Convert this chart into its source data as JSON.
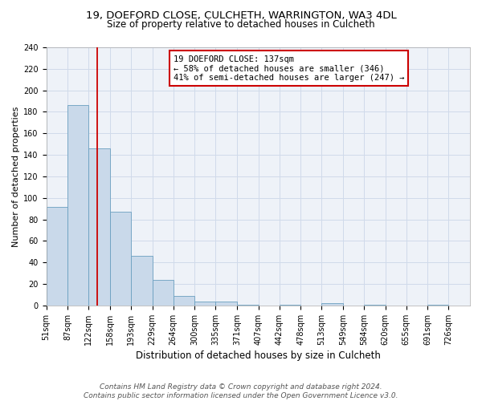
{
  "title": "19, DOEFORD CLOSE, CULCHETH, WARRINGTON, WA3 4DL",
  "subtitle": "Size of property relative to detached houses in Culcheth",
  "xlabel": "Distribution of detached houses by size in Culcheth",
  "ylabel": "Number of detached properties",
  "bar_color": "#c9d9ea",
  "bar_edge_color": "#6a9fc0",
  "grid_color": "#d0daea",
  "bg_color": "#eef2f8",
  "bin_edges": [
    51,
    87,
    122,
    158,
    193,
    229,
    264,
    300,
    335,
    371,
    407,
    442,
    478,
    513,
    549,
    584,
    620,
    655,
    691,
    726,
    762
  ],
  "bar_heights": [
    92,
    186,
    146,
    87,
    46,
    24,
    9,
    4,
    4,
    1,
    0,
    1,
    0,
    2,
    0,
    1,
    0,
    0,
    1,
    0
  ],
  "vline_x": 137,
  "vline_color": "#cc0000",
  "annotation_lines": [
    "19 DOEFORD CLOSE: 137sqm",
    "← 58% of detached houses are smaller (346)",
    "41% of semi-detached houses are larger (247) →"
  ],
  "annotation_box_color": "#cc0000",
  "ylim": [
    0,
    240
  ],
  "yticks": [
    0,
    20,
    40,
    60,
    80,
    100,
    120,
    140,
    160,
    180,
    200,
    220,
    240
  ],
  "footer_lines": [
    "Contains HM Land Registry data © Crown copyright and database right 2024.",
    "Contains public sector information licensed under the Open Government Licence v3.0."
  ],
  "title_fontsize": 9.5,
  "subtitle_fontsize": 8.5,
  "xlabel_fontsize": 8.5,
  "ylabel_fontsize": 8,
  "tick_fontsize": 7,
  "annotation_fontsize": 7.5,
  "footer_fontsize": 6.5
}
